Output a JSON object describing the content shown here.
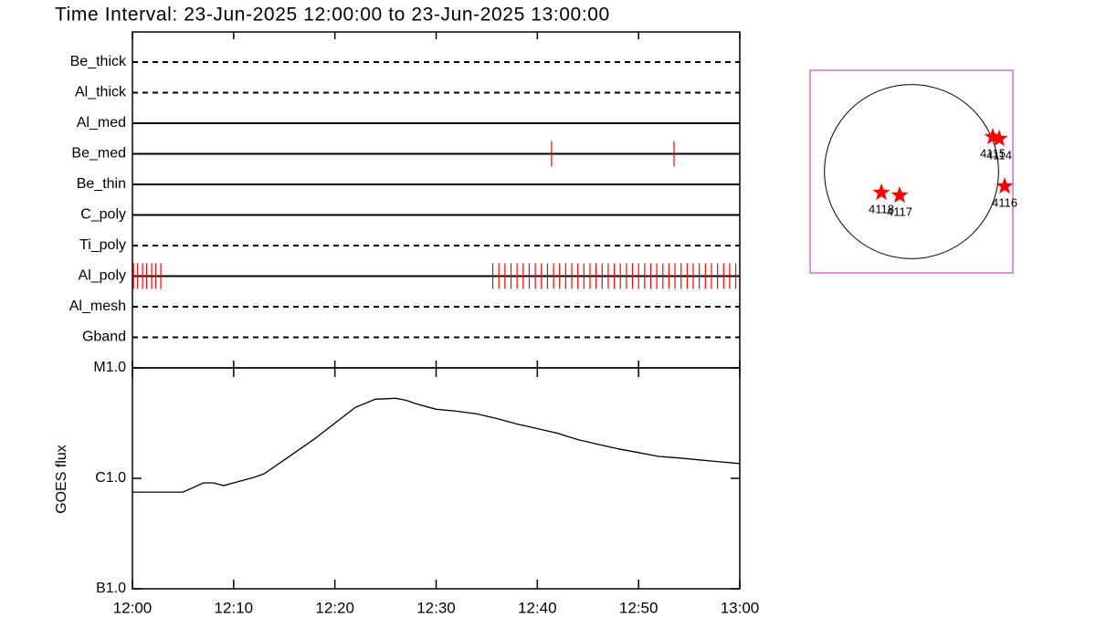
{
  "title": "Time Interval: 23-Jun-2025 12:00:00 to 23-Jun-2025 13:00:00",
  "chart_data": [
    {
      "type": "timeline",
      "event_color": "#ff0000",
      "filters": [
        {
          "name": "Be_thick",
          "style": "dashed",
          "times": []
        },
        {
          "name": "Al_thick",
          "style": "dashed",
          "times": []
        },
        {
          "name": "Al_med",
          "style": "solid",
          "times": []
        },
        {
          "name": "Be_med",
          "style": "solid",
          "times": [
            41.4,
            53.5
          ]
        },
        {
          "name": "Be_thin",
          "style": "solid",
          "times": []
        },
        {
          "name": "C_poly",
          "style": "solid",
          "times": []
        },
        {
          "name": "Ti_poly",
          "style": "dashed",
          "times": []
        },
        {
          "name": "Al_poly",
          "style": "solid",
          "times": [
            0.1,
            0.5,
            1.0,
            1.4,
            1.9,
            2.3,
            2.8,
            35.6,
            36.2,
            36.8,
            37.4,
            38.0,
            38.6,
            39.2,
            39.8,
            40.4,
            41.0,
            41.6,
            42.2,
            42.8,
            43.4,
            44.0,
            44.6,
            45.2,
            45.8,
            46.4,
            47.0,
            47.6,
            48.2,
            48.8,
            49.4,
            50.0,
            50.6,
            51.2,
            51.8,
            52.4,
            53.0,
            53.6,
            54.2,
            54.8,
            55.4,
            56.0,
            56.6,
            57.2,
            57.8,
            58.4,
            59.0,
            59.6
          ]
        },
        {
          "name": "Al_mesh",
          "style": "dashed",
          "times": []
        },
        {
          "name": "Gband",
          "style": "dashed",
          "times": []
        }
      ]
    },
    {
      "type": "line",
      "y_label": "GOES flux",
      "log_scale": true,
      "color": "#000000",
      "x": [
        0,
        5,
        7,
        8,
        9,
        10,
        12,
        13,
        15,
        18,
        20,
        22,
        24,
        26,
        27,
        28,
        30,
        32,
        34,
        36,
        38,
        40,
        42,
        44,
        46,
        48,
        50,
        52,
        54,
        56,
        58,
        60
      ],
      "values": [
        7.5e-07,
        7.5e-07,
        9.1e-07,
        9.1e-07,
        8.6e-07,
        9.1e-07,
        1.02e-06,
        1.1e-06,
        1.47e-06,
        2.28e-06,
        3.16e-06,
        4.38e-06,
        5.21e-06,
        5.31e-06,
        5.1e-06,
        4.73e-06,
        4.22e-06,
        4.06e-06,
        3.83e-06,
        3.48e-06,
        3.1e-06,
        2.82e-06,
        2.56e-06,
        2.24e-06,
        2.03e-06,
        1.85e-06,
        1.71e-06,
        1.58e-06,
        1.53e-06,
        1.47e-06,
        1.41e-06,
        1.36e-06
      ],
      "xlim": [
        0,
        60
      ],
      "xticks": [
        {
          "value": 0,
          "label": "12:00"
        },
        {
          "value": 10,
          "label": "12:10"
        },
        {
          "value": 20,
          "label": "12:20"
        },
        {
          "value": 30,
          "label": "12:30"
        },
        {
          "value": 40,
          "label": "12:40"
        },
        {
          "value": 50,
          "label": "12:50"
        },
        {
          "value": 60,
          "label": "13:00"
        }
      ],
      "ylim": [
        1e-07,
        1e-05
      ],
      "yticks": [
        {
          "value": 1e-07,
          "label": "B1.0"
        },
        {
          "value": 1e-06,
          "label": "C1.0"
        },
        {
          "value": 1e-05,
          "label": "M1.0"
        }
      ]
    },
    {
      "type": "scatter",
      "frame_color": "#cc44cc",
      "marker_color": "#ff0000",
      "solar_radius": 945,
      "xlim": [
        -1100,
        1100
      ],
      "ylim": [
        -1100,
        1100
      ],
      "labels": [
        "4115",
        "4114",
        "4116",
        "4118",
        "4117"
      ],
      "x": [
        882,
        951,
        1011,
        -327,
        -129
      ],
      "y": [
        377,
        357,
        -159,
        -228,
        -258
      ]
    }
  ]
}
